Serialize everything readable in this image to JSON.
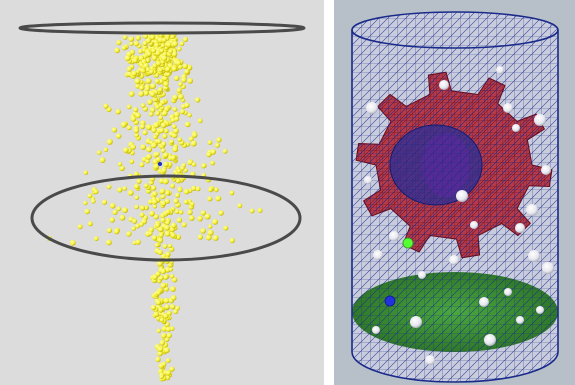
{
  "figure": {
    "left_panel": {
      "subject": "particle-spray-simulation",
      "colors": {
        "background": "#dcdcdc",
        "particle": "#f4f13a",
        "particle_outline": "#b8a800",
        "ring": "#4a4a4a",
        "marker": "#1a2cd0"
      }
    },
    "right_panel": {
      "subject": "meshed-cylinder-with-gear",
      "colors": {
        "background": "#b7c0c9",
        "mesh": "#1a2a8a",
        "gear": "#b02030",
        "floor": "#2f8a2a",
        "sphere": "#ffffff",
        "green_sphere": "#55ff33",
        "blue_sphere": "#2233dd"
      }
    }
  }
}
